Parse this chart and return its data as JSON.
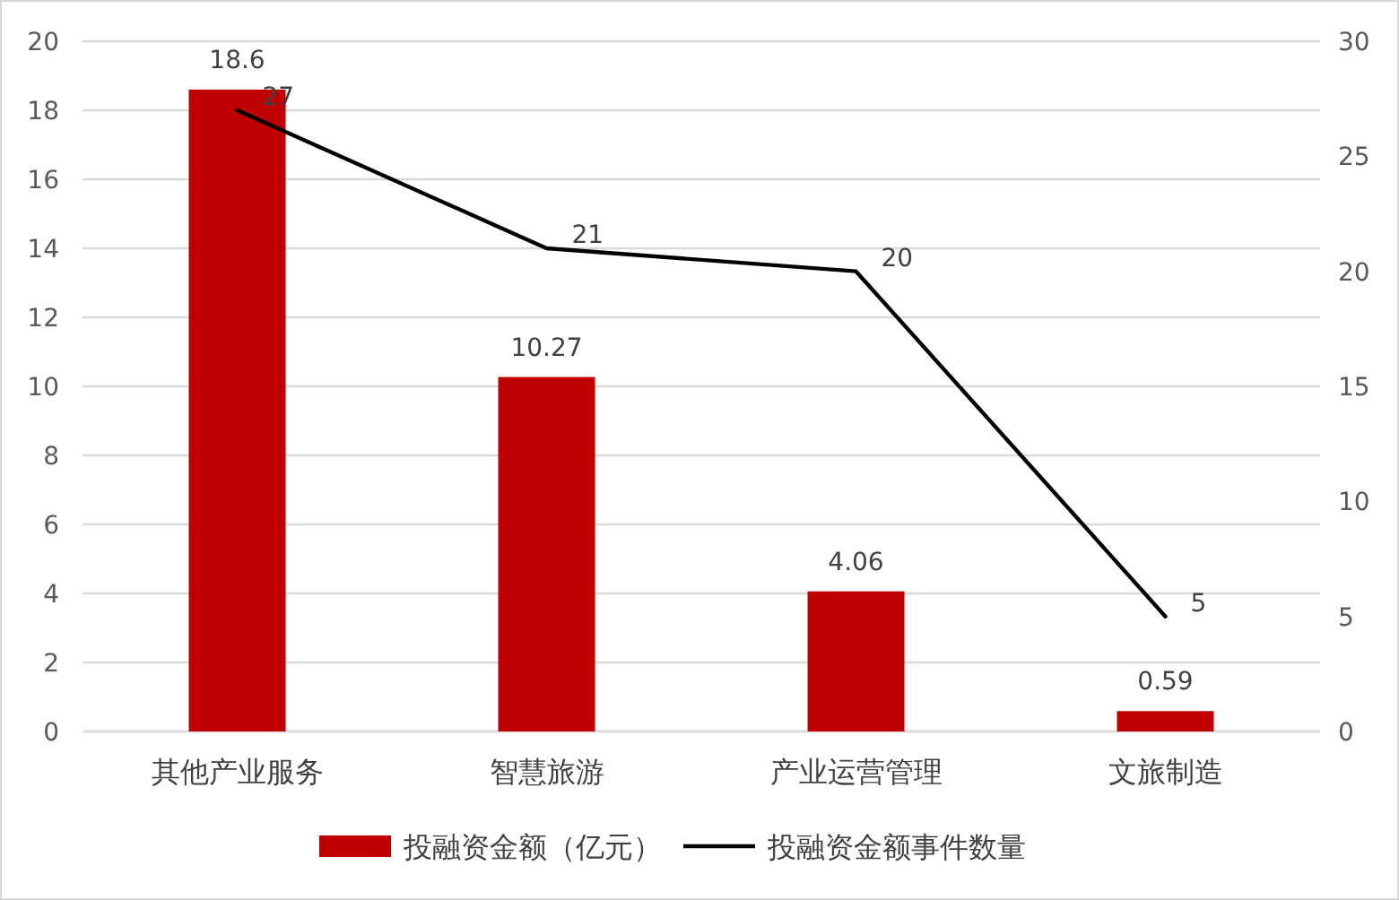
{
  "chart_data": {
    "type": "bar",
    "categories": [
      "其他产业服务",
      "智慧旅游",
      "产业运营管理",
      "文旅制造"
    ],
    "series": [
      {
        "name": "投融资金额（亿元）",
        "color": "#c00000",
        "values": [
          18.6,
          10.27,
          4.06,
          0.59
        ]
      },
      {
        "name": "投融资金额事件数量",
        "type": "line",
        "axis": "y2",
        "color": "#000000",
        "values": [
          27,
          21,
          20,
          5
        ]
      }
    ],
    "ylim": [
      0,
      20
    ],
    "yticks": [
      0,
      2,
      4,
      6,
      8,
      10,
      12,
      14,
      16,
      18,
      20
    ],
    "y2lim": [
      0,
      30
    ],
    "y2ticks": [
      0,
      5,
      10,
      15,
      20,
      25,
      30
    ],
    "grid": "y",
    "legend": "bottom",
    "data_labels": true
  }
}
